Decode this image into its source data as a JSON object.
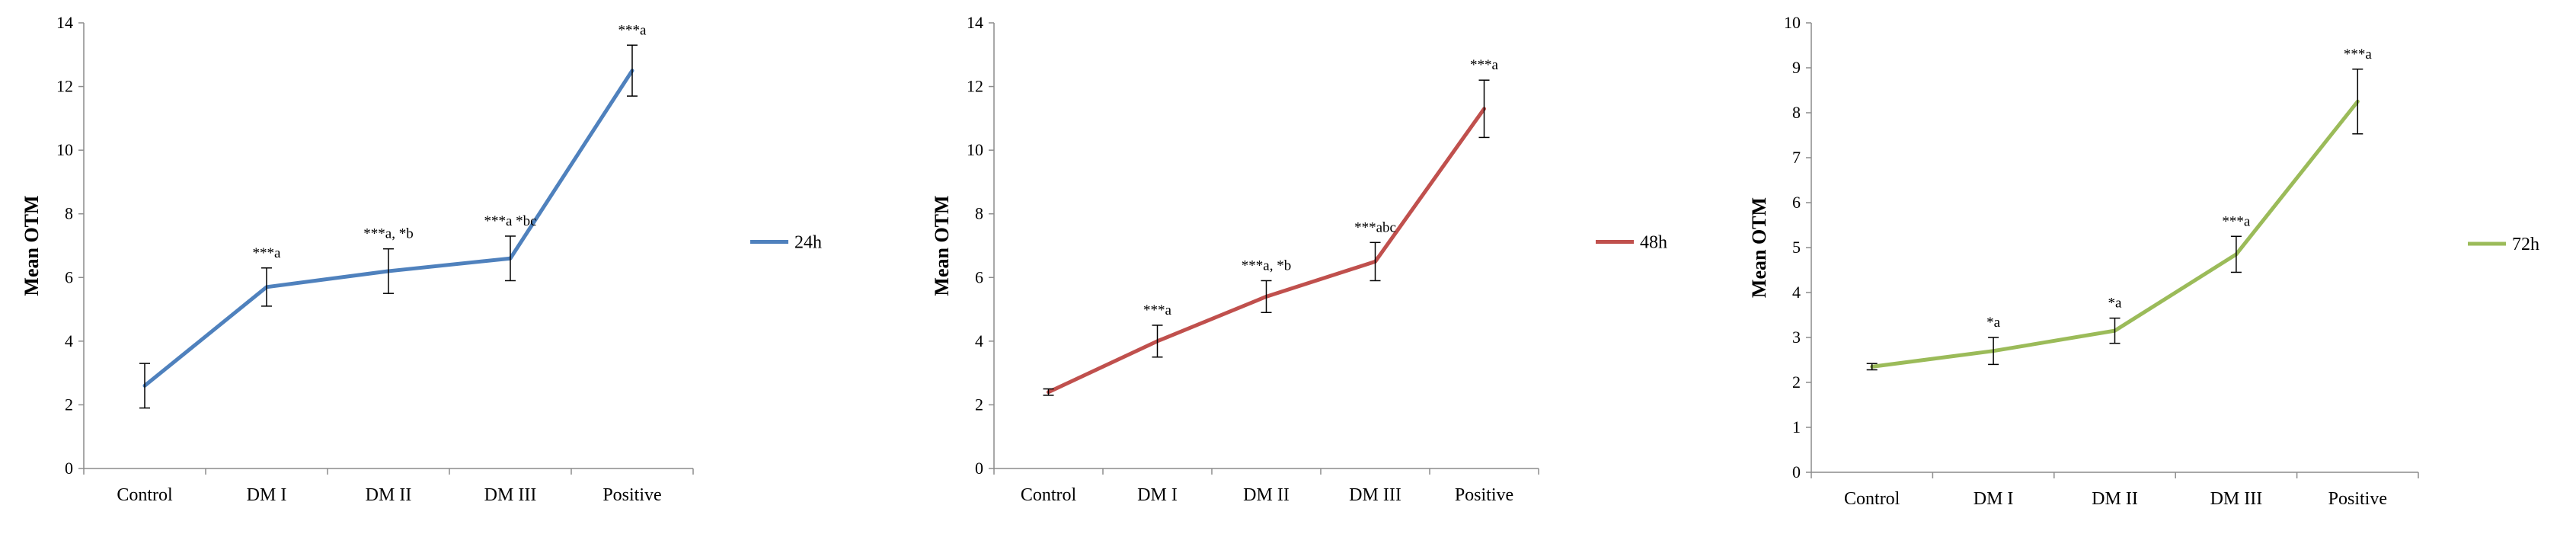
{
  "chart_data": [
    {
      "type": "line",
      "categories": [
        "Control",
        "DM I",
        "DM II",
        "DM III",
        "Positive"
      ],
      "series": [
        {
          "name": "24h",
          "values": [
            2.6,
            5.7,
            6.2,
            6.6,
            12.5
          ],
          "errors": [
            0.7,
            0.6,
            0.7,
            0.7,
            0.8
          ],
          "color": "#4F81BD"
        }
      ],
      "annotations": [
        "",
        "***a",
        "***a, *b",
        "***a *bc",
        "***a"
      ],
      "ylabel": "Mean OTM",
      "ylim": [
        0,
        14
      ],
      "yticks": [
        0,
        2,
        4,
        6,
        8,
        10,
        12,
        14
      ],
      "legend": "right",
      "grid": false
    },
    {
      "type": "line",
      "categories": [
        "Control",
        "DM I",
        "DM II",
        "DM III",
        "Positive"
      ],
      "series": [
        {
          "name": "48h",
          "values": [
            2.4,
            4.0,
            5.4,
            6.5,
            11.3
          ],
          "errors": [
            0.1,
            0.5,
            0.5,
            0.6,
            0.9
          ],
          "color": "#C0504D"
        }
      ],
      "annotations": [
        "",
        "***a",
        "***a, *b",
        "***abc",
        "***a"
      ],
      "ylabel": "Mean OTM",
      "ylim": [
        0,
        14
      ],
      "yticks": [
        0,
        2,
        4,
        6,
        8,
        10,
        12,
        14
      ],
      "legend": "right",
      "grid": false
    },
    {
      "type": "line",
      "categories": [
        "Control",
        "DM I",
        "DM II",
        "DM III",
        "Positive"
      ],
      "series": [
        {
          "name": "72h",
          "values": [
            2.35,
            2.7,
            3.15,
            4.85,
            8.25
          ],
          "errors": [
            0.07,
            0.3,
            0.28,
            0.4,
            0.72
          ],
          "color": "#9BBB59"
        }
      ],
      "annotations": [
        "",
        "*a",
        "*a",
        "***a",
        "***a"
      ],
      "ylabel": "Mean OTM",
      "ylim": [
        0,
        10
      ],
      "yticks": [
        0,
        1,
        2,
        3,
        4,
        5,
        6,
        7,
        8,
        9,
        10
      ],
      "legend": "right",
      "grid": false
    }
  ]
}
